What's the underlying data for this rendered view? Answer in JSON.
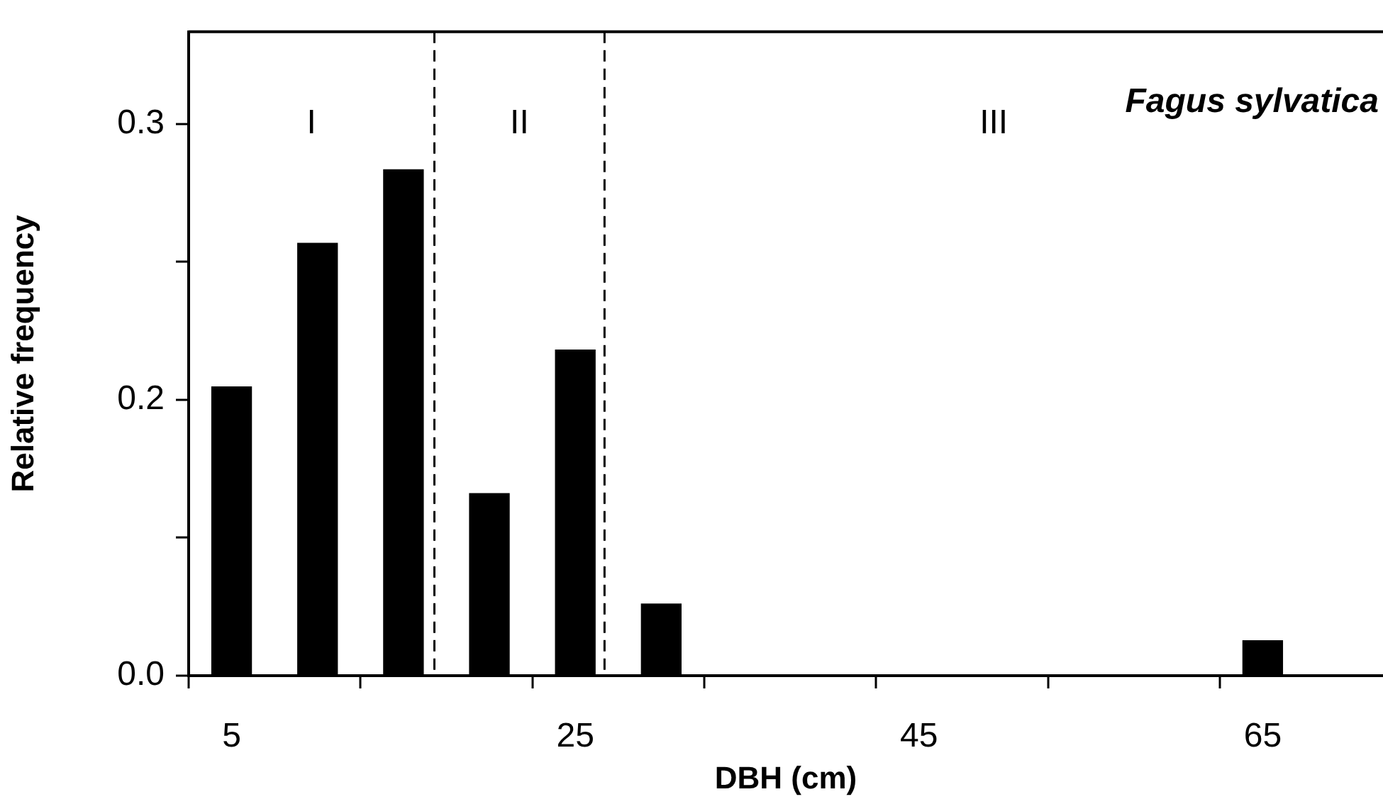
{
  "chart_data": {
    "type": "bar",
    "title": "Fagus sylvatica",
    "xlabel": "DBH (cm)",
    "ylabel": "Relative frequency",
    "x": [
      5,
      10,
      15,
      20,
      25,
      30,
      65
    ],
    "values": [
      0.157,
      0.235,
      0.275,
      0.099,
      0.177,
      0.039,
      0.019
    ],
    "color": "#000000",
    "xlim": [
      2.5,
      72
    ],
    "xticks": [
      {
        "value": 2.5,
        "label": null
      },
      5,
      {
        "value": 12.5,
        "label": null
      },
      {
        "value": 22.5,
        "label": null
      },
      25,
      {
        "value": 32.5,
        "label": null
      },
      {
        "value": 42.5,
        "label": null
      },
      45,
      {
        "value": 52.5,
        "label": null
      },
      {
        "value": 62.5,
        "label": null
      },
      65
    ],
    "ylim": [
      0,
      0.35
    ],
    "yticks": [
      {
        "value": 0,
        "label": "0.0"
      },
      {
        "value": 0.075,
        "label": null
      },
      {
        "value": 0.15,
        "label": "0.2"
      },
      {
        "value": 0.225,
        "label": null
      },
      {
        "value": 0.3,
        "label": "0.3"
      }
    ],
    "ref_lines": [
      {
        "axis": "x",
        "value": 16.8,
        "color": "#000000",
        "line_style": "dashed"
      },
      {
        "axis": "x",
        "value": 26.7,
        "color": "#000000",
        "line_style": "dashed"
      }
    ],
    "annotations": [
      "I",
      "II",
      "III"
    ],
    "grid": false,
    "legend": false
  }
}
